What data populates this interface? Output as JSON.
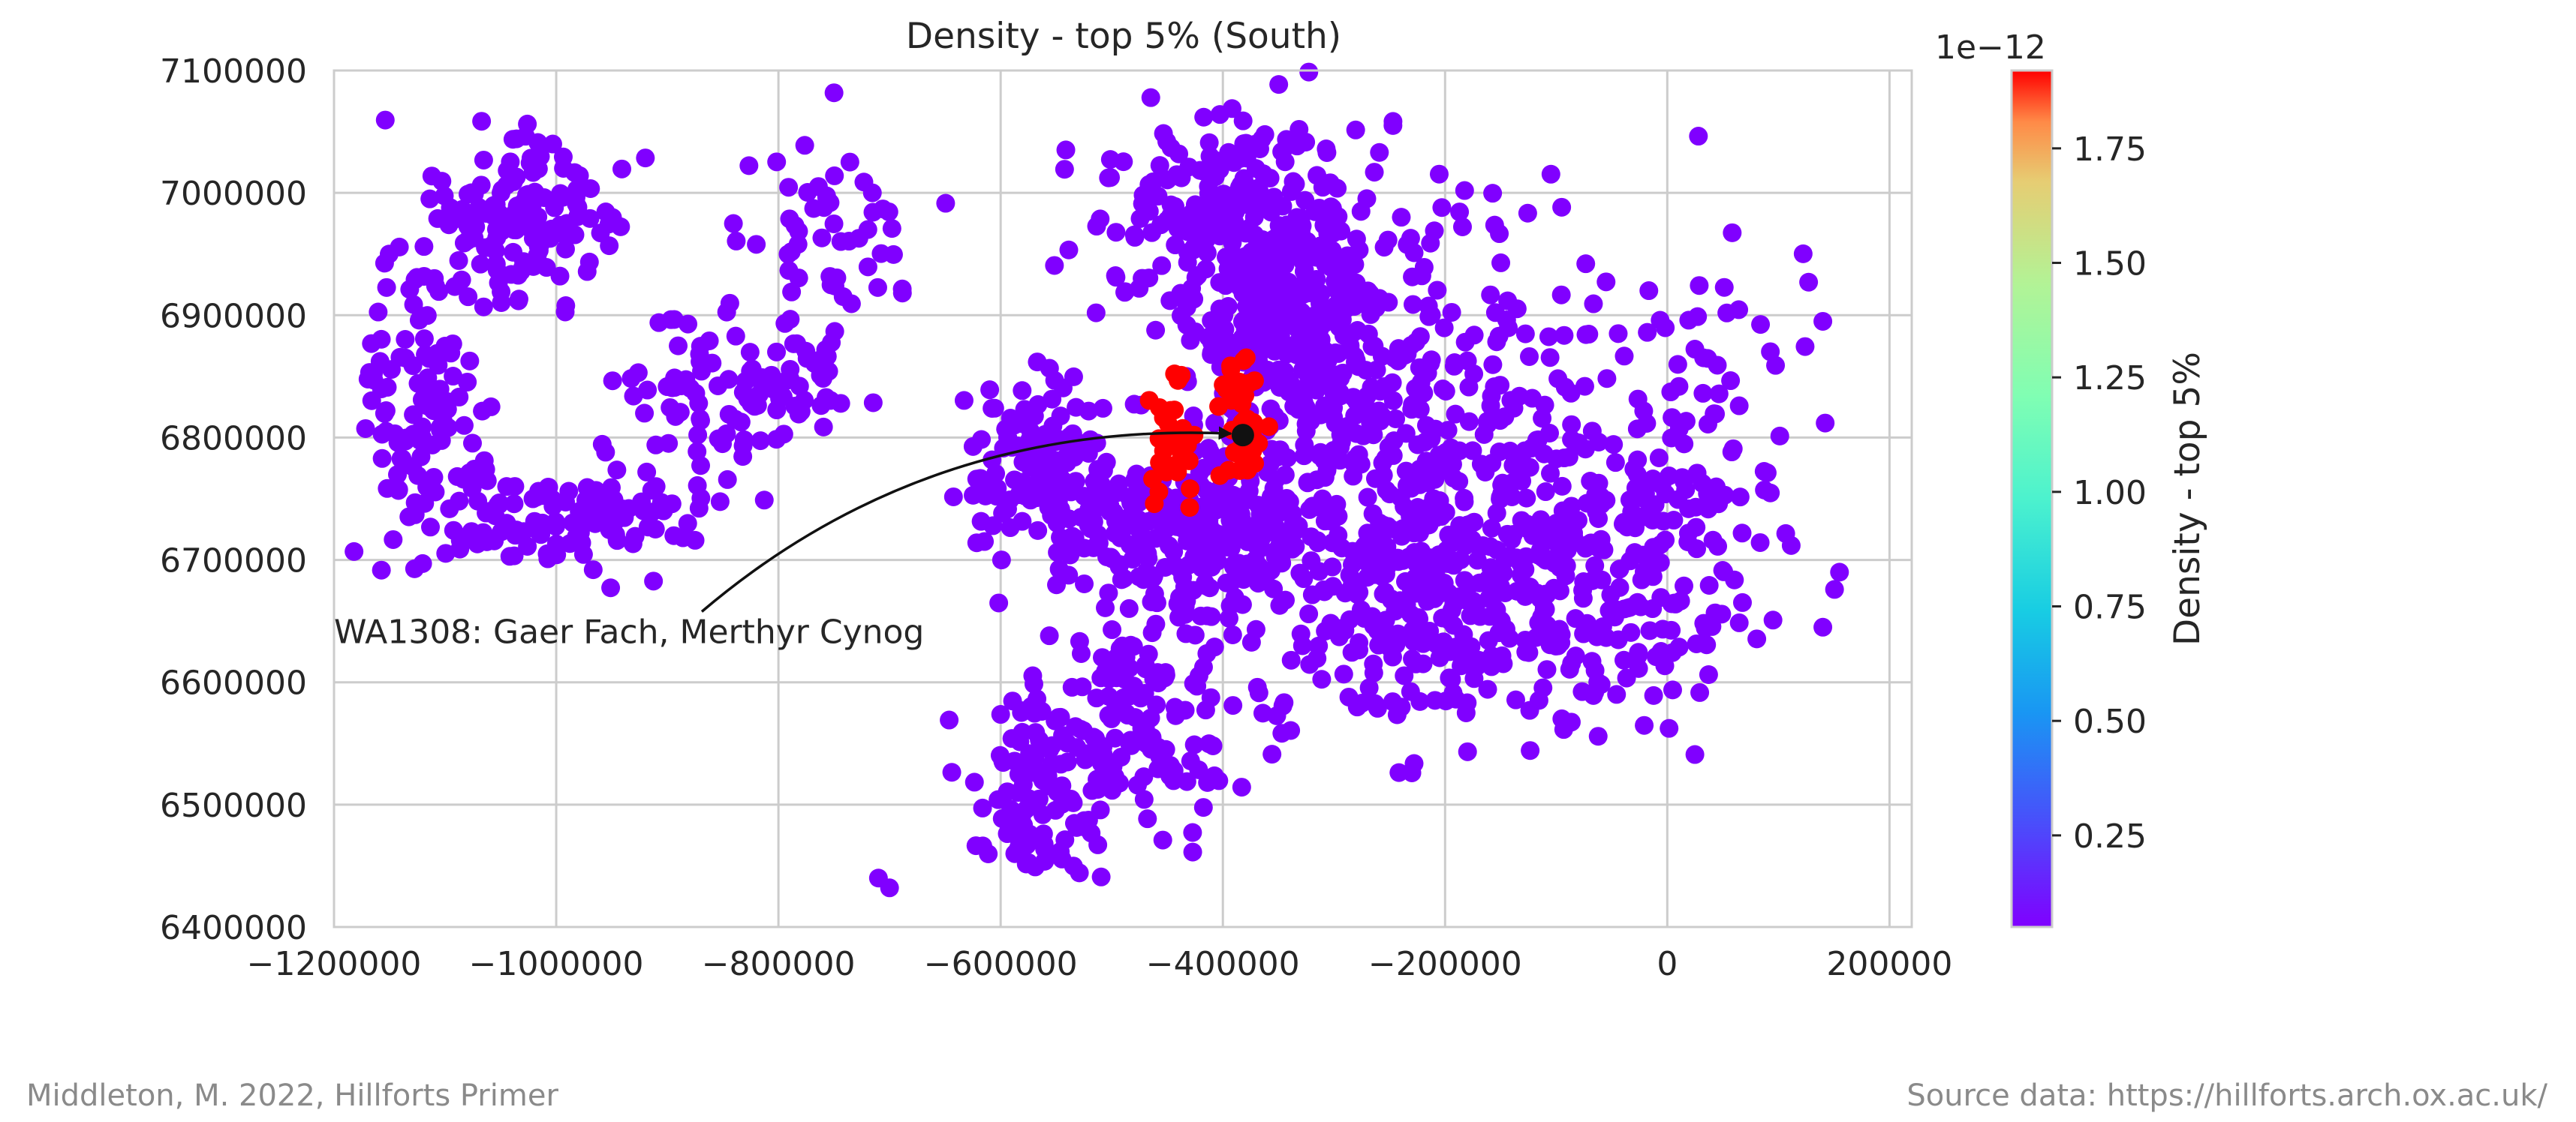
{
  "chart_data": {
    "type": "scatter",
    "title": "Density - top 5% (South)",
    "xlabel": "",
    "ylabel": "",
    "xlim": [
      -1200000,
      220000
    ],
    "ylim": [
      6400000,
      7100000
    ],
    "x_ticks": [
      -1200000,
      -1000000,
      -800000,
      -600000,
      -400000,
      -200000,
      0,
      200000
    ],
    "x_tick_labels": [
      "−1200000",
      "−1000000",
      "−800000",
      "−600000",
      "−400000",
      "−200000",
      "0",
      "200000"
    ],
    "y_ticks": [
      6400000,
      6500000,
      6600000,
      6700000,
      6800000,
      6900000,
      7000000,
      7100000
    ],
    "y_tick_labels": [
      "6400000",
      "6500000",
      "6600000",
      "6700000",
      "6800000",
      "6900000",
      "7000000",
      "7100000"
    ],
    "grid": true,
    "colormap": "rainbow",
    "colorbar": {
      "label": "Density - top 5%",
      "exponent_label": "1e−12",
      "range": [
        0.05,
        1.92
      ],
      "ticks": [
        0.25,
        0.5,
        0.75,
        1.0,
        1.25,
        1.5,
        1.75
      ],
      "tick_labels": [
        "0.25",
        "0.50",
        "0.75",
        "1.00",
        "1.25",
        "1.50",
        "1.75"
      ]
    },
    "annotation": {
      "text": "WA1308: Gaer Fach, Merthyr Cynog",
      "point": [
        -382000,
        6802000
      ],
      "text_anchor": [
        -1200000,
        6632000
      ]
    },
    "clusters": [
      {
        "value": 0.05,
        "count": 130,
        "center": [
          -1030000,
          6980000
        ],
        "spread": [
          45000,
          35000
        ]
      },
      {
        "value": 0.05,
        "count": 110,
        "center": [
          -1120000,
          6830000
        ],
        "spread": [
          30000,
          60000
        ]
      },
      {
        "value": 0.05,
        "count": 120,
        "center": [
          -990000,
          6735000
        ],
        "spread": [
          70000,
          20000
        ]
      },
      {
        "value": 0.05,
        "count": 70,
        "center": [
          -870000,
          6830000
        ],
        "spread": [
          45000,
          40000
        ]
      },
      {
        "value": 0.05,
        "count": 55,
        "center": [
          -760000,
          6960000
        ],
        "spread": [
          45000,
          45000
        ]
      },
      {
        "value": 0.05,
        "count": 40,
        "center": [
          -800000,
          6840000
        ],
        "spread": [
          40000,
          30000
        ]
      },
      {
        "value": 0.05,
        "count": 170,
        "center": [
          -555000,
          6770000
        ],
        "spread": [
          35000,
          35000
        ]
      },
      {
        "value": 0.05,
        "count": 200,
        "center": [
          -400000,
          6980000
        ],
        "spread": [
          55000,
          45000
        ]
      },
      {
        "value": 0.05,
        "count": 230,
        "center": [
          -350000,
          6900000
        ],
        "spread": [
          35000,
          40000
        ]
      },
      {
        "value": 0.05,
        "count": 260,
        "center": [
          -270000,
          6790000
        ],
        "spread": [
          70000,
          60000
        ]
      },
      {
        "value": 0.05,
        "count": 240,
        "center": [
          -210000,
          6660000
        ],
        "spread": [
          70000,
          50000
        ]
      },
      {
        "value": 0.05,
        "count": 180,
        "center": [
          -420000,
          6720000
        ],
        "spread": [
          45000,
          30000
        ]
      },
      {
        "value": 0.05,
        "count": 190,
        "center": [
          -100000,
          6760000
        ],
        "spread": [
          80000,
          90000
        ]
      },
      {
        "value": 0.05,
        "count": 120,
        "center": [
          -30000,
          6690000
        ],
        "spread": [
          60000,
          60000
        ]
      },
      {
        "value": 0.05,
        "count": 150,
        "center": [
          -470000,
          6580000
        ],
        "spread": [
          60000,
          50000
        ]
      },
      {
        "value": 0.05,
        "count": 90,
        "center": [
          -560000,
          6510000
        ],
        "spread": [
          35000,
          35000
        ]
      },
      {
        "value": 0.05,
        "count": 90,
        "center": [
          -270000,
          6940000
        ],
        "spread": [
          90000,
          60000
        ]
      },
      {
        "value": 0.05,
        "count": 45,
        "center": [
          60000,
          6820000
        ],
        "spread": [
          45000,
          80000
        ]
      },
      {
        "value": 1.92,
        "count": 35,
        "center": [
          -448000,
          6803000
        ],
        "spread": [
          12000,
          28000
        ]
      },
      {
        "value": 1.92,
        "count": 35,
        "center": [
          -385000,
          6815000
        ],
        "spread": [
          12000,
          32000
        ]
      }
    ],
    "outliers": [
      {
        "x": -700000,
        "y": 6432000
      },
      {
        "x": -710000,
        "y": 6440000
      },
      {
        "x": 140000,
        "y": 6895000
      },
      {
        "x": 140000,
        "y": 6645000
      },
      {
        "x": 155000,
        "y": 6690000
      }
    ]
  },
  "footer": {
    "left": "Middleton, M. 2022, Hillforts Primer",
    "right": "Source data: https://hillforts.arch.ox.ac.uk/"
  }
}
